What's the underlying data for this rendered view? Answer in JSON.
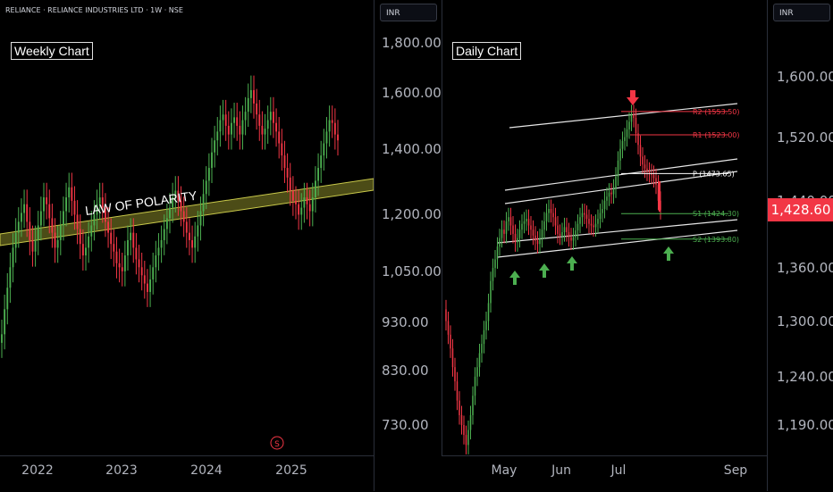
{
  "header": {
    "symbol": "RELIANCE · RELIANCE INDUSTRIES LTD · 1W · NSE"
  },
  "weekly": {
    "tag": "Weekly Chart",
    "currency": "INR",
    "annotation": "LAW OF POLARITY",
    "event_marker": "S",
    "y_ticks": [
      "1,800.00",
      "1,600.00",
      "1,400.00",
      "1,200.00",
      "1,050.00",
      "930.00",
      "830.00",
      "730.00"
    ],
    "x_ticks": [
      "2022",
      "2023",
      "2024",
      "2025"
    ]
  },
  "daily": {
    "tag": "Daily Chart",
    "currency": "INR",
    "y_ticks": [
      "1,600.00",
      "1,520.00",
      "1,440.00",
      "1,360.00",
      "1,300.00",
      "1,240.00",
      "1,190.00"
    ],
    "x_ticks": [
      "May",
      "Jun",
      "Jul",
      "Sep"
    ],
    "last_price": "1,428.60",
    "pivots": [
      {
        "label": "R2 (1553.50)",
        "value": 1553.5,
        "color": "#f23645"
      },
      {
        "label": "R1 (1523.00)",
        "value": 1523.0,
        "color": "#f23645"
      },
      {
        "label": "P (1473.65)",
        "value": 1473.65,
        "color": "#ffffff"
      },
      {
        "label": "S1 (1424.30)",
        "value": 1424.3,
        "color": "#4caf50"
      },
      {
        "label": "S2 (1393.80)",
        "value": 1393.8,
        "color": "#4caf50"
      }
    ]
  },
  "colors": {
    "up": "#26a69a",
    "up_green": "#4caf50",
    "down": "#f23645",
    "zone": "#8b8b2a"
  },
  "chart_data": [
    {
      "type": "candlestick",
      "title": "Weekly Chart",
      "scale": "log",
      "ylim": [
        680,
        1950
      ],
      "x_ticks": [
        "2022",
        "2023",
        "2024",
        "2025"
      ],
      "closes": [
        905,
        960,
        1010,
        1060,
        1110,
        1150,
        1180,
        1205,
        1230,
        1180,
        1130,
        1100,
        1130,
        1170,
        1210,
        1250,
        1230,
        1190,
        1150,
        1110,
        1130,
        1170,
        1210,
        1250,
        1280,
        1240,
        1200,
        1160,
        1120,
        1090,
        1110,
        1140,
        1170,
        1200,
        1230,
        1250,
        1220,
        1180,
        1150,
        1120,
        1100,
        1070,
        1060,
        1050,
        1090,
        1130,
        1150,
        1110,
        1080,
        1060,
        1040,
        1020,
        1000,
        1030,
        1060,
        1090,
        1110,
        1130,
        1160,
        1190,
        1220,
        1250,
        1270,
        1240,
        1210,
        1180,
        1150,
        1130,
        1110,
        1140,
        1170,
        1210,
        1260,
        1300,
        1340,
        1390,
        1430,
        1460,
        1500,
        1520,
        1480,
        1450,
        1490,
        1510,
        1480,
        1450,
        1500,
        1530,
        1580,
        1610,
        1560,
        1520,
        1480,
        1450,
        1470,
        1500,
        1530,
        1490,
        1460,
        1420,
        1380,
        1340,
        1310,
        1270,
        1240,
        1230,
        1200,
        1220,
        1250,
        1230,
        1210,
        1250,
        1300,
        1340,
        1380,
        1420,
        1460,
        1500,
        1490,
        1450,
        1430
      ],
      "annotation": "LAW OF POLARITY"
    },
    {
      "type": "candlestick",
      "title": "Daily Chart",
      "scale": "log",
      "ylim": [
        1160,
        1650
      ],
      "x_ticks": [
        "May",
        "Jun",
        "Jul",
        "Sep"
      ],
      "closes": [
        1300,
        1285,
        1270,
        1250,
        1235,
        1215,
        1200,
        1190,
        1180,
        1170,
        1185,
        1200,
        1220,
        1240,
        1250,
        1265,
        1275,
        1290,
        1300,
        1320,
        1345,
        1360,
        1370,
        1385,
        1395,
        1405,
        1400,
        1415,
        1420,
        1410,
        1400,
        1390,
        1395,
        1405,
        1412,
        1415,
        1418,
        1410,
        1405,
        1398,
        1392,
        1388,
        1395,
        1405,
        1415,
        1425,
        1430,
        1425,
        1420,
        1410,
        1400,
        1398,
        1402,
        1408,
        1402,
        1396,
        1392,
        1396,
        1404,
        1412,
        1420,
        1425,
        1423,
        1418,
        1412,
        1410,
        1408,
        1412,
        1418,
        1425,
        1430,
        1440,
        1445,
        1450,
        1448,
        1455,
        1470,
        1490,
        1505,
        1515,
        1520,
        1530,
        1540,
        1550,
        1545,
        1525,
        1510,
        1495,
        1485,
        1480,
        1476,
        1474,
        1472,
        1468,
        1460,
        1440,
        1428.6
      ],
      "last_price": 1428.6,
      "pivots": {
        "R2": 1553.5,
        "R1": 1523.0,
        "P": 1473.65,
        "S1": 1424.3,
        "S2": 1393.8
      }
    }
  ]
}
